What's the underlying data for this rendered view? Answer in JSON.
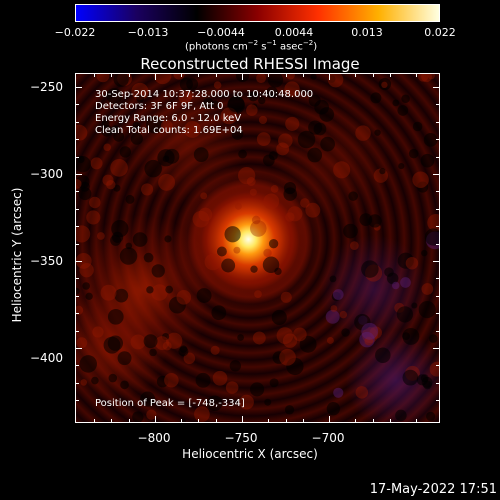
{
  "colorbar": {
    "ticks": [
      "−0.022",
      "−0.013",
      "−0.0044",
      "0.0044",
      "0.013",
      "0.022"
    ],
    "units_prefix": "(photons cm",
    "units_exp1": "−2",
    "units_mid1": " s",
    "units_exp2": "−1",
    "units_mid2": " asec",
    "units_exp3": "−2",
    "units_suffix": ")",
    "colors": [
      "#0000ff",
      "#1a0060",
      "#000000",
      "#8a0000",
      "#ff3000",
      "#ffb000",
      "#ffffe0"
    ]
  },
  "plot": {
    "title": "Reconstructed RHESSI Image",
    "info": [
      "30-Sep-2014 10:37:28.000 to 10:40:48.000",
      "Detectors: 3F 6F 9F, Att 0",
      "Energy Range: 6.0 - 12.0 keV",
      "Clean    Total counts: 1.69E+04"
    ],
    "peak": "Position of Peak = [-748,-334]",
    "x_axis": {
      "title": "Heliocentric X (arcsec)",
      "ticks": [
        "−800",
        "−750",
        "−700"
      ]
    },
    "y_axis": {
      "title": "Heliocentric Y (arcsec)",
      "ticks": [
        "−250",
        "−300",
        "−350",
        "−400"
      ]
    }
  },
  "footer": {
    "timestamp": "17-May-2022 17:51"
  }
}
